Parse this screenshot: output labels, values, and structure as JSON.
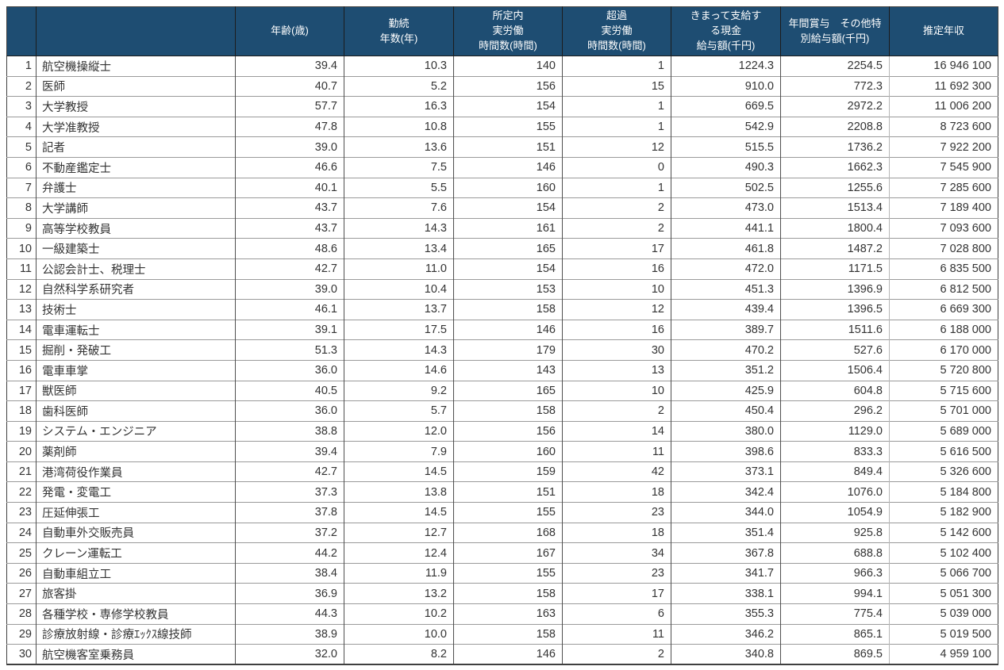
{
  "style": {
    "header_bg": "#1e4d72",
    "header_text_color": "#ffffff",
    "body_text_color": "#333333",
    "grid_row_line": "#9a9a9a",
    "grid_col_line": "#4f4f4f"
  },
  "chart_data": {
    "type": "table",
    "title": "",
    "columns": [
      "",
      "",
      "年齢(歳)",
      "勤続\n年数(年)",
      "所定内\n実労働\n時間数(時間)",
      "超過\n実労働\n時間数(時間)",
      "きまって支給す\nる現金\n給与額(千円)",
      "年間賞与　その他特\n別給与額(千円)",
      "推定年収"
    ],
    "column_keys": [
      "rank",
      "occupation",
      "age_years",
      "tenure_years",
      "scheduled_hours",
      "overtime_hours",
      "monthly_cash_salary_kyen",
      "annual_bonus_kyen",
      "estimated_annual_income_yen"
    ],
    "rows": [
      [
        "1",
        "航空機操縦士",
        "39.4",
        "10.3",
        "140",
        "1",
        "1224.3",
        "2254.5",
        "16 946 100"
      ],
      [
        "2",
        "医師",
        "40.7",
        "5.2",
        "156",
        "15",
        "910.0",
        "772.3",
        "11 692 300"
      ],
      [
        "3",
        "大学教授",
        "57.7",
        "16.3",
        "154",
        "1",
        "669.5",
        "2972.2",
        "11 006 200"
      ],
      [
        "4",
        "大学准教授",
        "47.8",
        "10.8",
        "155",
        "1",
        "542.9",
        "2208.8",
        "8 723 600"
      ],
      [
        "5",
        "記者",
        "39.0",
        "13.6",
        "151",
        "12",
        "515.5",
        "1736.2",
        "7 922 200"
      ],
      [
        "6",
        "不動産鑑定士",
        "46.6",
        "7.5",
        "146",
        "0",
        "490.3",
        "1662.3",
        "7 545 900"
      ],
      [
        "7",
        "弁護士",
        "40.1",
        "5.5",
        "160",
        "1",
        "502.5",
        "1255.6",
        "7 285 600"
      ],
      [
        "8",
        "大学講師",
        "43.7",
        "7.6",
        "154",
        "2",
        "473.0",
        "1513.4",
        "7 189 400"
      ],
      [
        "9",
        "高等学校教員",
        "43.7",
        "14.3",
        "161",
        "2",
        "441.1",
        "1800.4",
        "7 093 600"
      ],
      [
        "10",
        "一級建築士",
        "48.6",
        "13.4",
        "165",
        "17",
        "461.8",
        "1487.2",
        "7 028 800"
      ],
      [
        "11",
        "公認会計士、税理士",
        "42.7",
        "11.0",
        "154",
        "16",
        "472.0",
        "1171.5",
        "6 835 500"
      ],
      [
        "12",
        "自然科学系研究者",
        "39.0",
        "10.4",
        "153",
        "10",
        "451.3",
        "1396.9",
        "6 812 500"
      ],
      [
        "13",
        "技術士",
        "46.1",
        "13.7",
        "158",
        "12",
        "439.4",
        "1396.5",
        "6 669 300"
      ],
      [
        "14",
        "電車運転士",
        "39.1",
        "17.5",
        "146",
        "16",
        "389.7",
        "1511.6",
        "6 188 000"
      ],
      [
        "15",
        "掘削・発破工",
        "51.3",
        "14.3",
        "179",
        "30",
        "470.2",
        "527.6",
        "6 170 000"
      ],
      [
        "16",
        "電車車掌",
        "36.0",
        "14.6",
        "143",
        "13",
        "351.2",
        "1506.4",
        "5 720 800"
      ],
      [
        "17",
        "獣医師",
        "40.5",
        "9.2",
        "165",
        "10",
        "425.9",
        "604.8",
        "5 715 600"
      ],
      [
        "18",
        "歯科医師",
        "36.0",
        "5.7",
        "158",
        "2",
        "450.4",
        "296.2",
        "5 701 000"
      ],
      [
        "19",
        "システム・エンジニア",
        "38.8",
        "12.0",
        "156",
        "14",
        "380.0",
        "1129.0",
        "5 689 000"
      ],
      [
        "20",
        "薬剤師",
        "39.4",
        "7.9",
        "160",
        "11",
        "398.6",
        "833.3",
        "5 616 500"
      ],
      [
        "21",
        "港湾荷役作業員",
        "42.7",
        "14.5",
        "159",
        "42",
        "373.1",
        "849.4",
        "5 326 600"
      ],
      [
        "22",
        "発電・変電工",
        "37.3",
        "13.8",
        "151",
        "18",
        "342.4",
        "1076.0",
        "5 184 800"
      ],
      [
        "23",
        "圧延伸張工",
        "37.8",
        "14.5",
        "155",
        "23",
        "344.0",
        "1054.9",
        "5 182 900"
      ],
      [
        "24",
        "自動車外交販売員",
        "37.2",
        "12.7",
        "168",
        "18",
        "351.4",
        "925.8",
        "5 142 600"
      ],
      [
        "25",
        "クレーン運転工",
        "44.2",
        "12.4",
        "167",
        "34",
        "367.8",
        "688.8",
        "5 102 400"
      ],
      [
        "26",
        "自動車組立工",
        "38.4",
        "11.9",
        "155",
        "23",
        "341.7",
        "966.3",
        "5 066 700"
      ],
      [
        "27",
        "旅客掛",
        "36.9",
        "13.2",
        "158",
        "17",
        "338.1",
        "994.1",
        "5 051 300"
      ],
      [
        "28",
        "各種学校・専修学校教員",
        "44.3",
        "10.2",
        "163",
        "6",
        "355.3",
        "775.4",
        "5 039 000"
      ],
      [
        "29",
        "診療放射線・診療ｴｯｸｽ線技師",
        "38.9",
        "10.0",
        "158",
        "11",
        "346.2",
        "865.1",
        "5 019 500"
      ],
      [
        "30",
        "航空機客室乗務員",
        "32.0",
        "8.2",
        "146",
        "2",
        "340.8",
        "869.5",
        "4 959 100"
      ]
    ]
  }
}
